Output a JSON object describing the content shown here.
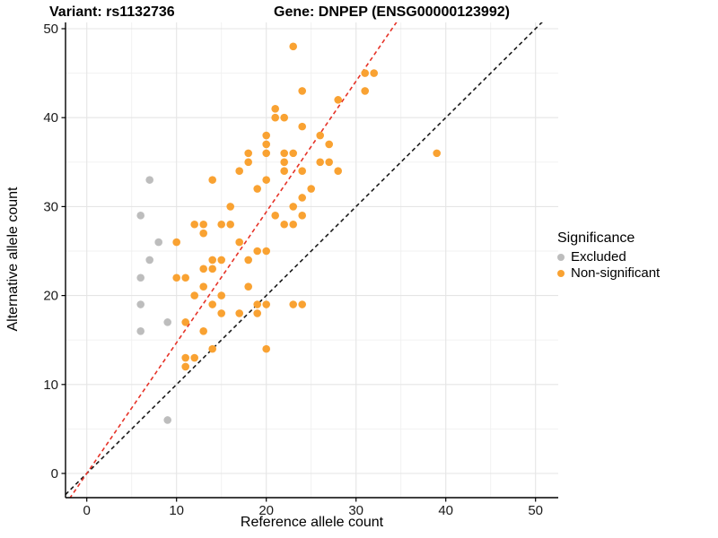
{
  "titles": {
    "left": "Variant: rs1132736",
    "right": "Gene: DNPEP (ENSG00000123992)"
  },
  "axes": {
    "x_label": "Reference allele count",
    "y_label": "Alternative allele count",
    "x_ticks": [
      0,
      10,
      20,
      30,
      40,
      50
    ],
    "y_ticks": [
      0,
      10,
      20,
      30,
      40,
      50
    ],
    "minor_ticks": [
      5,
      15,
      25,
      35,
      45
    ]
  },
  "legend": {
    "title": "Significance",
    "items": [
      {
        "label": "Excluded",
        "color": "#bdbdbd"
      },
      {
        "label": "Non-significant",
        "color": "#f9a232"
      }
    ]
  },
  "colors": {
    "orange": "#f9a232",
    "gray": "#bdbdbd",
    "ratio_line": "#e63328",
    "identity_line": "#1a1a1a",
    "grid_major": "#e5e5e5",
    "grid_minor": "#f0f0f0",
    "axis_text": "#1a1a1a"
  },
  "chart_data": {
    "type": "scatter",
    "title_left": "Variant: rs1132736",
    "title_right": "Gene: DNPEP (ENSG00000123992)",
    "xlabel": "Reference allele count",
    "ylabel": "Alternative allele count",
    "xlim": [
      -2.5,
      52.5
    ],
    "ylim": [
      -2.7,
      50.7
    ],
    "grid": "major+minor",
    "legend_position": "right",
    "series": [
      {
        "name": "Non-significant",
        "color": "#f9a232",
        "points": [
          [
            23,
            48
          ],
          [
            31,
            45
          ],
          [
            32,
            45
          ],
          [
            24,
            43
          ],
          [
            31,
            43
          ],
          [
            28,
            42
          ],
          [
            21,
            41
          ],
          [
            21,
            40
          ],
          [
            22,
            40
          ],
          [
            24,
            39
          ],
          [
            20,
            38
          ],
          [
            26,
            38
          ],
          [
            20,
            37
          ],
          [
            27,
            37
          ],
          [
            18,
            36
          ],
          [
            20,
            36
          ],
          [
            22,
            36
          ],
          [
            23,
            36
          ],
          [
            39,
            36
          ],
          [
            18,
            35
          ],
          [
            22,
            35
          ],
          [
            26,
            35
          ],
          [
            27,
            35
          ],
          [
            17,
            34
          ],
          [
            22,
            34
          ],
          [
            24,
            34
          ],
          [
            28,
            34
          ],
          [
            14,
            33
          ],
          [
            20,
            33
          ],
          [
            19,
            32
          ],
          [
            25,
            32
          ],
          [
            24,
            31
          ],
          [
            16,
            30
          ],
          [
            23,
            30
          ],
          [
            21,
            29
          ],
          [
            24,
            29
          ],
          [
            12,
            28
          ],
          [
            13,
            28
          ],
          [
            15,
            28
          ],
          [
            16,
            28
          ],
          [
            22,
            28
          ],
          [
            23,
            28
          ],
          [
            13,
            27
          ],
          [
            10,
            26
          ],
          [
            17,
            26
          ],
          [
            19,
            25
          ],
          [
            20,
            25
          ],
          [
            14,
            24
          ],
          [
            15,
            24
          ],
          [
            18,
            24
          ],
          [
            13,
            23
          ],
          [
            14,
            23
          ],
          [
            10,
            22
          ],
          [
            11,
            22
          ],
          [
            13,
            21
          ],
          [
            18,
            21
          ],
          [
            12,
            20
          ],
          [
            15,
            20
          ],
          [
            14,
            19
          ],
          [
            19,
            19
          ],
          [
            20,
            19
          ],
          [
            23,
            19
          ],
          [
            24,
            19
          ],
          [
            15,
            18
          ],
          [
            17,
            18
          ],
          [
            19,
            18
          ],
          [
            11,
            17
          ],
          [
            13,
            16
          ],
          [
            14,
            14
          ],
          [
            20,
            14
          ],
          [
            11,
            13
          ],
          [
            12,
            13
          ],
          [
            11,
            12
          ]
        ]
      },
      {
        "name": "Excluded",
        "color": "#bdbdbd",
        "points": [
          [
            7,
            33
          ],
          [
            6,
            29
          ],
          [
            8,
            26
          ],
          [
            7,
            24
          ],
          [
            6,
            22
          ],
          [
            6,
            19
          ],
          [
            9,
            17
          ],
          [
            6,
            16
          ],
          [
            9,
            6
          ]
        ]
      }
    ],
    "lines": [
      {
        "name": "identity-line",
        "slope": 1.0,
        "intercept": 0,
        "color": "#1a1a1a",
        "dashed": true
      },
      {
        "name": "allelic-ratio-line",
        "slope": 1.47,
        "intercept": 0,
        "color": "#e63328",
        "dashed": true
      }
    ]
  }
}
